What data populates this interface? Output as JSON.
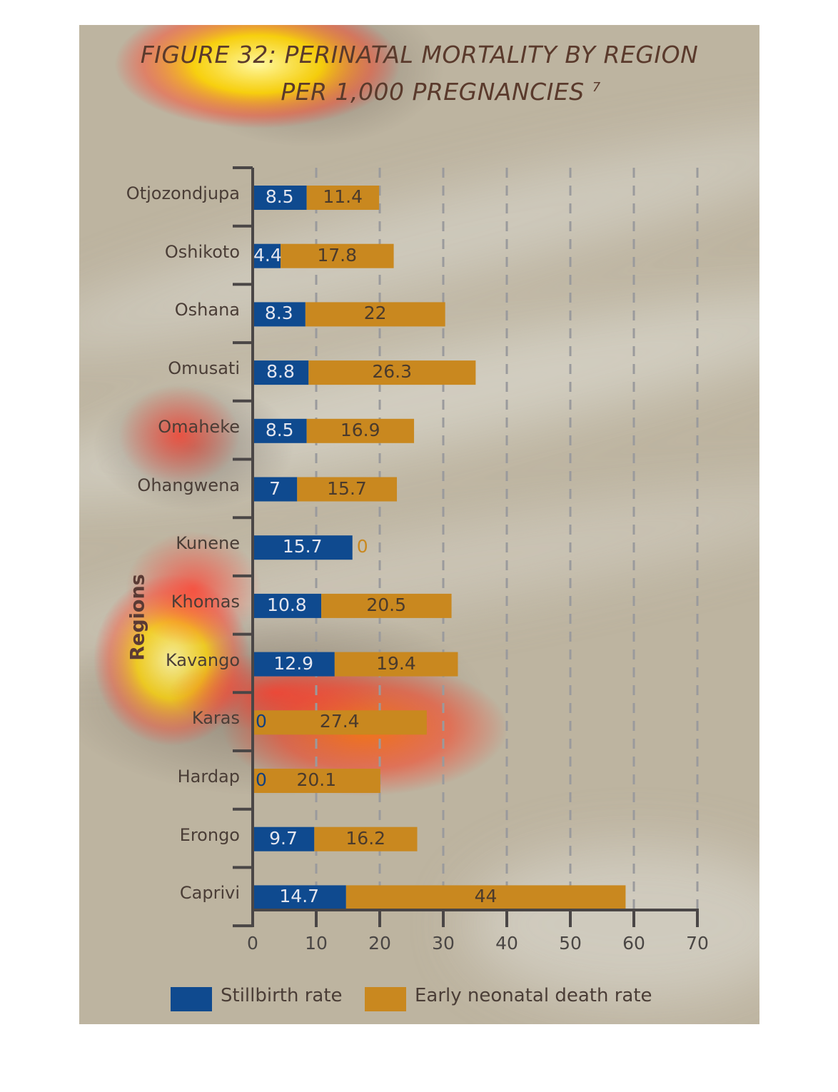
{
  "title_line1": "FIGURE 32: PERINATAL MORTALITY BY REGION",
  "title_line2": "PER 1,000 PREGNANCIES",
  "title_note": "7",
  "colors": {
    "stillbirth": "#0f4a8f",
    "neonatal": "#c9881f",
    "background": "#c0b8a6",
    "axis": "#4a4646"
  },
  "chart_data": {
    "type": "bar",
    "orientation": "horizontal",
    "stacked": true,
    "ylabel": "Regions",
    "xlim": [
      0,
      70
    ],
    "xticks": [
      "0",
      "10",
      "20",
      "30",
      "40",
      "50",
      "60",
      "70"
    ],
    "grid": "dashed vertical",
    "legend_position": "bottom",
    "categories": [
      "Otjozondjupa",
      "Oshikoto",
      "Oshana",
      "Omusati",
      "Omaheke",
      "Ohangwena",
      "Kunene",
      "Khomas",
      "Kavango",
      "Karas",
      "Hardap",
      "Erongo",
      "Caprivi"
    ],
    "series": [
      {
        "name": "Stillbirth rate",
        "values": [
          8.5,
          4.4,
          8.3,
          8.8,
          8.5,
          7,
          15.7,
          10.8,
          12.9,
          0,
          0,
          9.7,
          14.7
        ],
        "labels": [
          "8.5",
          "4.4",
          "8.3",
          "8.8",
          "8.5",
          "7",
          "15.7",
          "10.8",
          "12.9",
          "0",
          "0",
          "9.7",
          "14.7"
        ]
      },
      {
        "name": "Early neonatal death rate",
        "values": [
          11.4,
          17.8,
          22,
          26.3,
          16.9,
          15.7,
          0,
          20.5,
          19.4,
          27.4,
          20.1,
          16.2,
          44
        ],
        "labels": [
          "11.4",
          "17.8",
          "22",
          "26.3",
          "16.9",
          "15.7",
          "0",
          "20.5",
          "19.4",
          "27.4",
          "20.1",
          "16.2",
          "44"
        ]
      }
    ]
  }
}
